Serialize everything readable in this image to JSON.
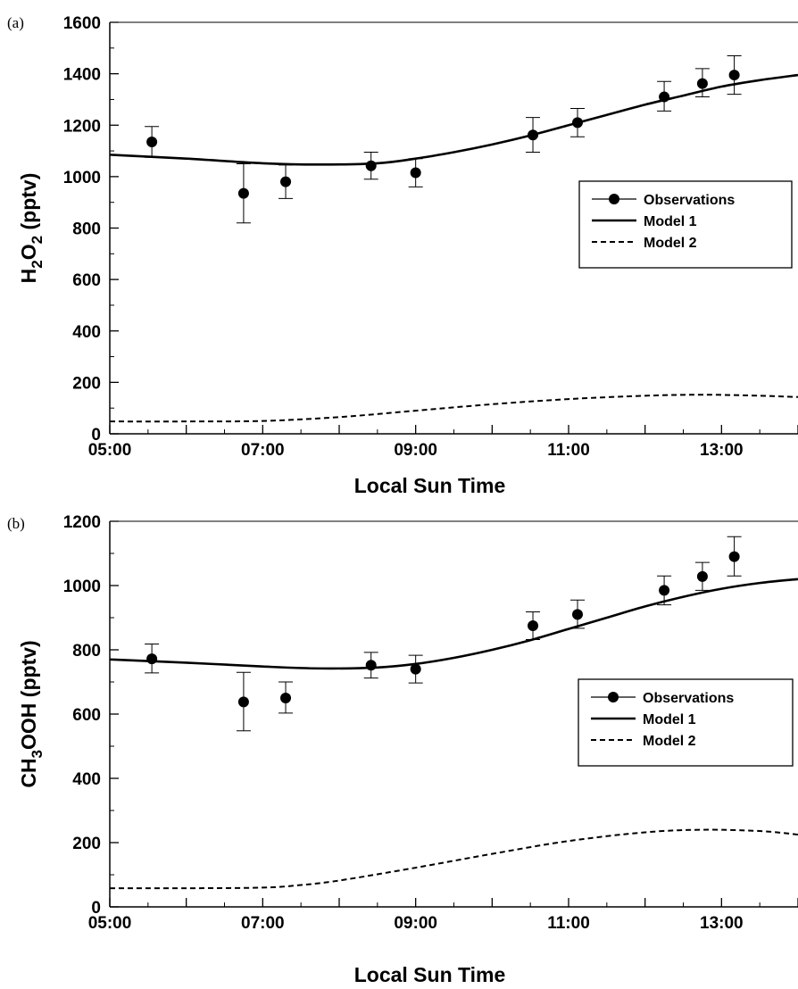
{
  "chart_data": [
    {
      "type": "line",
      "panel_label": "(a)",
      "xlabel": "Local Sun Time",
      "ylabel_parts": [
        "H",
        "2",
        "O",
        "2",
        "  (pptv)"
      ],
      "xlim": [
        "05:00",
        "14:00"
      ],
      "ylim": [
        0,
        1600
      ],
      "x_ticks": [
        "05:00",
        "07:00",
        "09:00",
        "11:00",
        "13:00"
      ],
      "y_ticks": [
        "0",
        "200",
        "400",
        "600",
        "800",
        "1000",
        "1200",
        "1400",
        "1600"
      ],
      "legend": {
        "placement": "right",
        "entries": [
          "Observations",
          "Model 1",
          "Model 2"
        ]
      },
      "series": [
        {
          "name": "Observations",
          "kind": "points-with-error-bars",
          "points": [
            {
              "x": "05:33",
              "y": 1135,
              "low": 1075,
              "high": 1195
            },
            {
              "x": "06:45",
              "y": 935,
              "low": 820,
              "high": 1050
            },
            {
              "x": "07:18",
              "y": 980,
              "low": 915,
              "high": 1045
            },
            {
              "x": "08:25",
              "y": 1042,
              "low": 990,
              "high": 1095
            },
            {
              "x": "09:00",
              "y": 1015,
              "low": 960,
              "high": 1070
            },
            {
              "x": "10:32",
              "y": 1162,
              "low": 1095,
              "high": 1230
            },
            {
              "x": "11:07",
              "y": 1210,
              "low": 1155,
              "high": 1265
            },
            {
              "x": "12:15",
              "y": 1310,
              "low": 1255,
              "high": 1370
            },
            {
              "x": "12:45",
              "y": 1362,
              "low": 1310,
              "high": 1420
            },
            {
              "x": "13:10",
              "y": 1395,
              "low": 1320,
              "high": 1470
            }
          ]
        },
        {
          "name": "Model 1",
          "kind": "solid-line",
          "points": [
            {
              "x": "05:00",
              "y": 1085
            },
            {
              "x": "06:00",
              "y": 1070
            },
            {
              "x": "07:00",
              "y": 1052
            },
            {
              "x": "07:45",
              "y": 1047
            },
            {
              "x": "08:30",
              "y": 1052
            },
            {
              "x": "09:00",
              "y": 1070
            },
            {
              "x": "09:30",
              "y": 1095
            },
            {
              "x": "10:00",
              "y": 1125
            },
            {
              "x": "10:30",
              "y": 1160
            },
            {
              "x": "11:00",
              "y": 1200
            },
            {
              "x": "11:30",
              "y": 1240
            },
            {
              "x": "12:00",
              "y": 1280
            },
            {
              "x": "12:30",
              "y": 1315
            },
            {
              "x": "13:00",
              "y": 1350
            },
            {
              "x": "13:30",
              "y": 1375
            },
            {
              "x": "14:00",
              "y": 1395
            }
          ]
        },
        {
          "name": "Model 2",
          "kind": "dashed-line",
          "points": [
            {
              "x": "05:00",
              "y": 48
            },
            {
              "x": "06:00",
              "y": 48
            },
            {
              "x": "07:00",
              "y": 50
            },
            {
              "x": "08:00",
              "y": 65
            },
            {
              "x": "09:00",
              "y": 90
            },
            {
              "x": "10:00",
              "y": 115
            },
            {
              "x": "11:00",
              "y": 135
            },
            {
              "x": "12:00",
              "y": 148
            },
            {
              "x": "12:45",
              "y": 152
            },
            {
              "x": "13:30",
              "y": 148
            },
            {
              "x": "14:00",
              "y": 143
            }
          ]
        }
      ]
    },
    {
      "type": "line",
      "panel_label": "(b)",
      "xlabel": "Local Sun Time",
      "ylabel_parts": [
        "CH",
        "3",
        "OOH",
        "",
        "  (pptv)"
      ],
      "xlim": [
        "05:00",
        "14:00"
      ],
      "ylim": [
        0,
        1200
      ],
      "x_ticks": [
        "05:00",
        "07:00",
        "09:00",
        "11:00",
        "13:00"
      ],
      "y_ticks": [
        "0",
        "200",
        "400",
        "600",
        "800",
        "1000",
        "1200"
      ],
      "legend": {
        "placement": "right",
        "entries": [
          "Observations",
          "Model 1",
          "Model 2"
        ]
      },
      "series": [
        {
          "name": "Observations",
          "kind": "points-with-error-bars",
          "points": [
            {
              "x": "05:33",
              "y": 772,
              "low": 728,
              "high": 818
            },
            {
              "x": "06:45",
              "y": 638,
              "low": 548,
              "high": 730
            },
            {
              "x": "07:18",
              "y": 650,
              "low": 603,
              "high": 700
            },
            {
              "x": "08:25",
              "y": 752,
              "low": 712,
              "high": 792
            },
            {
              "x": "09:00",
              "y": 740,
              "low": 697,
              "high": 783
            },
            {
              "x": "10:32",
              "y": 875,
              "low": 832,
              "high": 918
            },
            {
              "x": "11:07",
              "y": 910,
              "low": 867,
              "high": 955
            },
            {
              "x": "12:15",
              "y": 985,
              "low": 940,
              "high": 1030
            },
            {
              "x": "12:45",
              "y": 1028,
              "low": 985,
              "high": 1072
            },
            {
              "x": "13:10",
              "y": 1090,
              "low": 1030,
              "high": 1152
            }
          ]
        },
        {
          "name": "Model 1",
          "kind": "solid-line",
          "points": [
            {
              "x": "05:00",
              "y": 770
            },
            {
              "x": "06:00",
              "y": 760
            },
            {
              "x": "07:00",
              "y": 748
            },
            {
              "x": "07:45",
              "y": 742
            },
            {
              "x": "08:30",
              "y": 745
            },
            {
              "x": "09:00",
              "y": 756
            },
            {
              "x": "09:30",
              "y": 775
            },
            {
              "x": "10:00",
              "y": 800
            },
            {
              "x": "10:30",
              "y": 830
            },
            {
              "x": "11:00",
              "y": 865
            },
            {
              "x": "11:30",
              "y": 900
            },
            {
              "x": "12:00",
              "y": 935
            },
            {
              "x": "12:30",
              "y": 965
            },
            {
              "x": "13:00",
              "y": 990
            },
            {
              "x": "13:30",
              "y": 1008
            },
            {
              "x": "14:00",
              "y": 1020
            }
          ]
        },
        {
          "name": "Model 2",
          "kind": "dashed-line",
          "points": [
            {
              "x": "05:00",
              "y": 58
            },
            {
              "x": "06:00",
              "y": 58
            },
            {
              "x": "07:00",
              "y": 60
            },
            {
              "x": "07:30",
              "y": 68
            },
            {
              "x": "08:00",
              "y": 82
            },
            {
              "x": "09:00",
              "y": 122
            },
            {
              "x": "10:00",
              "y": 165
            },
            {
              "x": "11:00",
              "y": 205
            },
            {
              "x": "12:00",
              "y": 232
            },
            {
              "x": "12:45",
              "y": 240
            },
            {
              "x": "13:30",
              "y": 236
            },
            {
              "x": "14:00",
              "y": 225
            }
          ]
        }
      ]
    }
  ]
}
